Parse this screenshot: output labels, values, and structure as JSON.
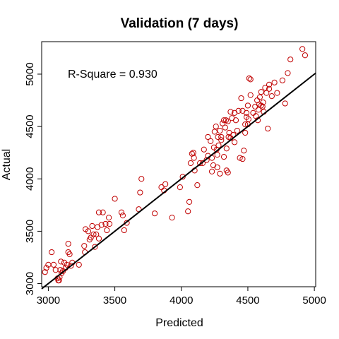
{
  "chart_data": {
    "type": "scatter",
    "title": "Validation (7 days)",
    "xlabel": "Predicted",
    "ylabel": "Actual",
    "annotation": "R-Square = 0.930",
    "xlim": [
      2950,
      5010
    ],
    "ylim": [
      2970,
      5310
    ],
    "xticks": [
      3000,
      3500,
      4000,
      4500,
      5000
    ],
    "yticks": [
      3000,
      3500,
      4000,
      4500,
      5000
    ],
    "point_color": "#cc0000",
    "line_color": "#000000",
    "grid": false,
    "fit_line": {
      "x": [
        2950,
        5010
      ],
      "y": [
        2950,
        5010
      ]
    },
    "series": [
      {
        "points": [
          [
            2975,
            3110
          ],
          [
            2985,
            3150
          ],
          [
            3000,
            3180
          ],
          [
            3025,
            3300
          ],
          [
            3040,
            3180
          ],
          [
            3055,
            3130
          ],
          [
            3070,
            3050
          ],
          [
            3075,
            3030
          ],
          [
            3080,
            3030
          ],
          [
            3085,
            3060
          ],
          [
            3090,
            3130
          ],
          [
            3095,
            3210
          ],
          [
            3100,
            3100
          ],
          [
            3110,
            3120
          ],
          [
            3120,
            3200
          ],
          [
            3130,
            3150
          ],
          [
            3140,
            3180
          ],
          [
            3150,
            3300
          ],
          [
            3150,
            3380
          ],
          [
            3160,
            3280
          ],
          [
            3170,
            3170
          ],
          [
            3180,
            3200
          ],
          [
            3230,
            3180
          ],
          [
            3270,
            3360
          ],
          [
            3275,
            3300
          ],
          [
            3280,
            3520
          ],
          [
            3300,
            3500
          ],
          [
            3310,
            3420
          ],
          [
            3320,
            3440
          ],
          [
            3330,
            3550
          ],
          [
            3340,
            3470
          ],
          [
            3350,
            3350
          ],
          [
            3360,
            3470
          ],
          [
            3370,
            3540
          ],
          [
            3380,
            3430
          ],
          [
            3380,
            3680
          ],
          [
            3400,
            3560
          ],
          [
            3410,
            3680
          ],
          [
            3430,
            3570
          ],
          [
            3440,
            3510
          ],
          [
            3455,
            3630
          ],
          [
            3460,
            3570
          ],
          [
            3500,
            3810
          ],
          [
            3550,
            3680
          ],
          [
            3560,
            3650
          ],
          [
            3570,
            3510
          ],
          [
            3590,
            3580
          ],
          [
            3680,
            3710
          ],
          [
            3690,
            3870
          ],
          [
            3700,
            4000
          ],
          [
            3800,
            3670
          ],
          [
            3850,
            3920
          ],
          [
            3870,
            3890
          ],
          [
            3880,
            3950
          ],
          [
            3930,
            3630
          ],
          [
            3990,
            3920
          ],
          [
            4010,
            4020
          ],
          [
            4050,
            3690
          ],
          [
            4060,
            3780
          ],
          [
            4070,
            4150
          ],
          [
            4080,
            4240
          ],
          [
            4090,
            4250
          ],
          [
            4095,
            4200
          ],
          [
            4100,
            4080
          ],
          [
            4120,
            3940
          ],
          [
            4140,
            4150
          ],
          [
            4160,
            4150
          ],
          [
            4170,
            4280
          ],
          [
            4190,
            4180
          ],
          [
            4200,
            4220
          ],
          [
            4200,
            4400
          ],
          [
            4220,
            4360
          ],
          [
            4230,
            4070
          ],
          [
            4230,
            4200
          ],
          [
            4240,
            4130
          ],
          [
            4245,
            4300
          ],
          [
            4250,
            4450
          ],
          [
            4260,
            4500
          ],
          [
            4265,
            4280
          ],
          [
            4270,
            4230
          ],
          [
            4270,
            4110
          ],
          [
            4275,
            4400
          ],
          [
            4280,
            4320
          ],
          [
            4290,
            4460
          ],
          [
            4290,
            4050
          ],
          [
            4300,
            4370
          ],
          [
            4300,
            4400
          ],
          [
            4310,
            4530
          ],
          [
            4320,
            4560
          ],
          [
            4320,
            4210
          ],
          [
            4330,
            4490
          ],
          [
            4335,
            4560
          ],
          [
            4340,
            4290
          ],
          [
            4340,
            4080
          ],
          [
            4350,
            4550
          ],
          [
            4350,
            4060
          ],
          [
            4355,
            4400
          ],
          [
            4360,
            4440
          ],
          [
            4370,
            4640
          ],
          [
            4370,
            4390
          ],
          [
            4380,
            4580
          ],
          [
            4390,
            4420
          ],
          [
            4400,
            4630
          ],
          [
            4400,
            4350
          ],
          [
            4410,
            4560
          ],
          [
            4420,
            4460
          ],
          [
            4430,
            4650
          ],
          [
            4440,
            4200
          ],
          [
            4450,
            4770
          ],
          [
            4460,
            4190
          ],
          [
            4460,
            4650
          ],
          [
            4470,
            4270
          ],
          [
            4480,
            4520
          ],
          [
            4480,
            4440
          ],
          [
            4490,
            4590
          ],
          [
            4490,
            4630
          ],
          [
            4500,
            4700
          ],
          [
            4500,
            4520
          ],
          [
            4505,
            4570
          ],
          [
            4510,
            4960
          ],
          [
            4520,
            4950
          ],
          [
            4520,
            4800
          ],
          [
            4540,
            4630
          ],
          [
            4555,
            4690
          ],
          [
            4560,
            4600
          ],
          [
            4570,
            4750
          ],
          [
            4575,
            4560
          ],
          [
            4580,
            4660
          ],
          [
            4585,
            4710
          ],
          [
            4590,
            4780
          ],
          [
            4600,
            4830
          ],
          [
            4600,
            4700
          ],
          [
            4610,
            4690
          ],
          [
            4615,
            4730
          ],
          [
            4620,
            4640
          ],
          [
            4630,
            4870
          ],
          [
            4640,
            4820
          ],
          [
            4650,
            4480
          ],
          [
            4660,
            4860
          ],
          [
            4660,
            4900
          ],
          [
            4680,
            4790
          ],
          [
            4700,
            4920
          ],
          [
            4720,
            4820
          ],
          [
            4760,
            4940
          ],
          [
            4780,
            4720
          ],
          [
            4800,
            5010
          ],
          [
            4820,
            5140
          ],
          [
            4910,
            5240
          ],
          [
            4930,
            5180
          ]
        ]
      }
    ]
  }
}
